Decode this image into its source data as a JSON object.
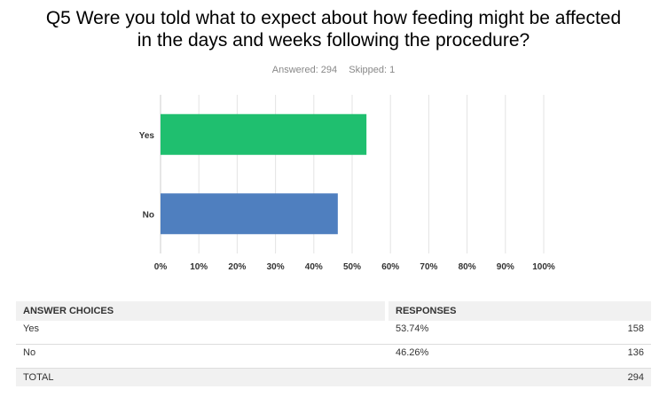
{
  "question": {
    "title_line1": "Q5 Were you told what to expect about how feeding might be affected",
    "title_line2": "in the days and weeks following the procedure?"
  },
  "meta": {
    "answered": "Answered: 294",
    "skipped": "Skipped: 1"
  },
  "chart_data": {
    "type": "bar",
    "orientation": "horizontal",
    "categories": [
      "Yes",
      "No"
    ],
    "values": [
      53.74,
      46.26
    ],
    "colors": [
      "#1fbf6f",
      "#4f7fbf"
    ],
    "xlim": [
      0,
      100
    ],
    "xticks": [
      "0%",
      "10%",
      "20%",
      "30%",
      "40%",
      "50%",
      "60%",
      "70%",
      "80%",
      "90%",
      "100%"
    ],
    "grid": true
  },
  "table": {
    "headers": [
      "ANSWER CHOICES",
      "RESPONSES"
    ],
    "rows": [
      {
        "choice": "Yes",
        "percent": "53.74%",
        "count": "158"
      },
      {
        "choice": "No",
        "percent": "46.26%",
        "count": "136"
      }
    ],
    "total_label": "TOTAL",
    "total_count": "294"
  }
}
